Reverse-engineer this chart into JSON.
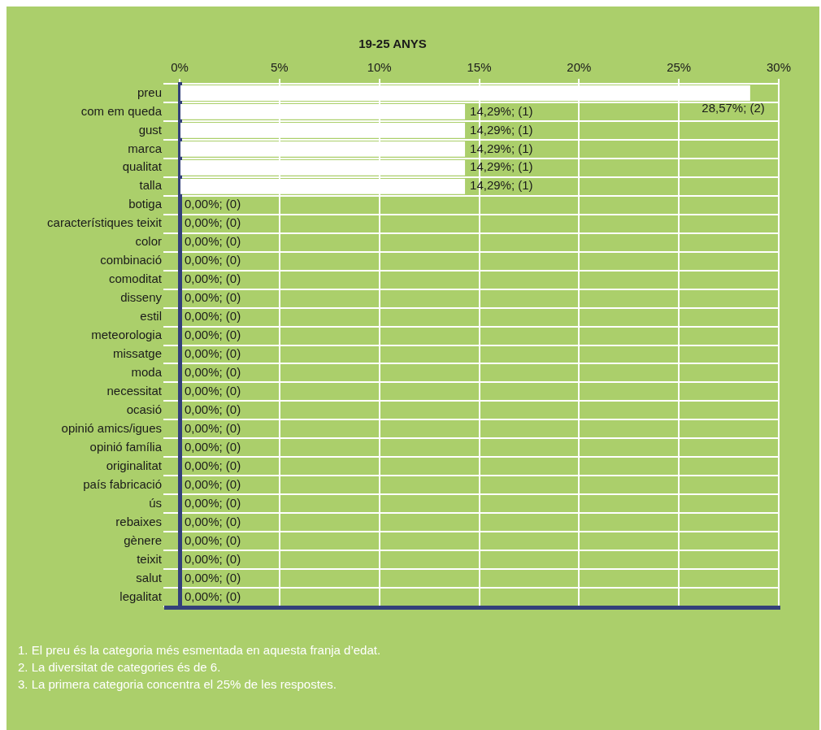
{
  "chart_data": {
    "type": "bar",
    "orientation": "horizontal",
    "title": "19-25 ANYS",
    "categories": [
      "preu",
      "com em queda",
      "gust",
      "marca",
      "qualitat",
      "talla",
      "botiga",
      "característiques teixit",
      "color",
      "combinació",
      "comoditat",
      "disseny",
      "estil",
      "meteorologia",
      "missatge",
      "moda",
      "necessitat",
      "ocasió",
      "opinió amics/igues",
      "opinió família",
      "originalitat",
      "país fabricació",
      "ús",
      "rebaixes",
      "gènere",
      "teixit",
      "salut",
      "legalitat"
    ],
    "values": [
      28.57,
      14.29,
      14.29,
      14.29,
      14.29,
      14.29,
      0,
      0,
      0,
      0,
      0,
      0,
      0,
      0,
      0,
      0,
      0,
      0,
      0,
      0,
      0,
      0,
      0,
      0,
      0,
      0,
      0,
      0
    ],
    "value_labels": [
      "28,57%; (2)",
      "14,29%; (1)",
      "14,29%; (1)",
      "14,29%; (1)",
      "14,29%; (1)",
      "14,29%; (1)",
      "0,00%; (0)",
      "0,00%; (0)",
      "0,00%; (0)",
      "0,00%; (0)",
      "0,00%; (0)",
      "0,00%; (0)",
      "0,00%; (0)",
      "0,00%; (0)",
      "0,00%; (0)",
      "0,00%; (0)",
      "0,00%; (0)",
      "0,00%; (0)",
      "0,00%; (0)",
      "0,00%; (0)",
      "0,00%; (0)",
      "0,00%; (0)",
      "0,00%; (0)",
      "0,00%; (0)",
      "0,00%; (0)",
      "0,00%; (0)",
      "0,00%; (0)",
      "0,00%; (0)"
    ],
    "color": "#ffffff",
    "xlim": [
      0,
      30
    ],
    "xticks": [
      {
        "value": 0,
        "label": "0%"
      },
      {
        "value": 5,
        "label": "5%"
      },
      {
        "value": 10,
        "label": "10%"
      },
      {
        "value": 15,
        "label": "15%"
      },
      {
        "value": 20,
        "label": "20%"
      },
      {
        "value": 25,
        "label": "25%"
      },
      {
        "value": 30,
        "label": "30%"
      }
    ],
    "grid": true,
    "annotations": [
      "1. El preu és la categoria més esmentada en aquesta franja d’edat.",
      "2. La diversitat de categories és de 6.",
      "3. La primera categoria concentra el 25% de les respostes."
    ]
  }
}
